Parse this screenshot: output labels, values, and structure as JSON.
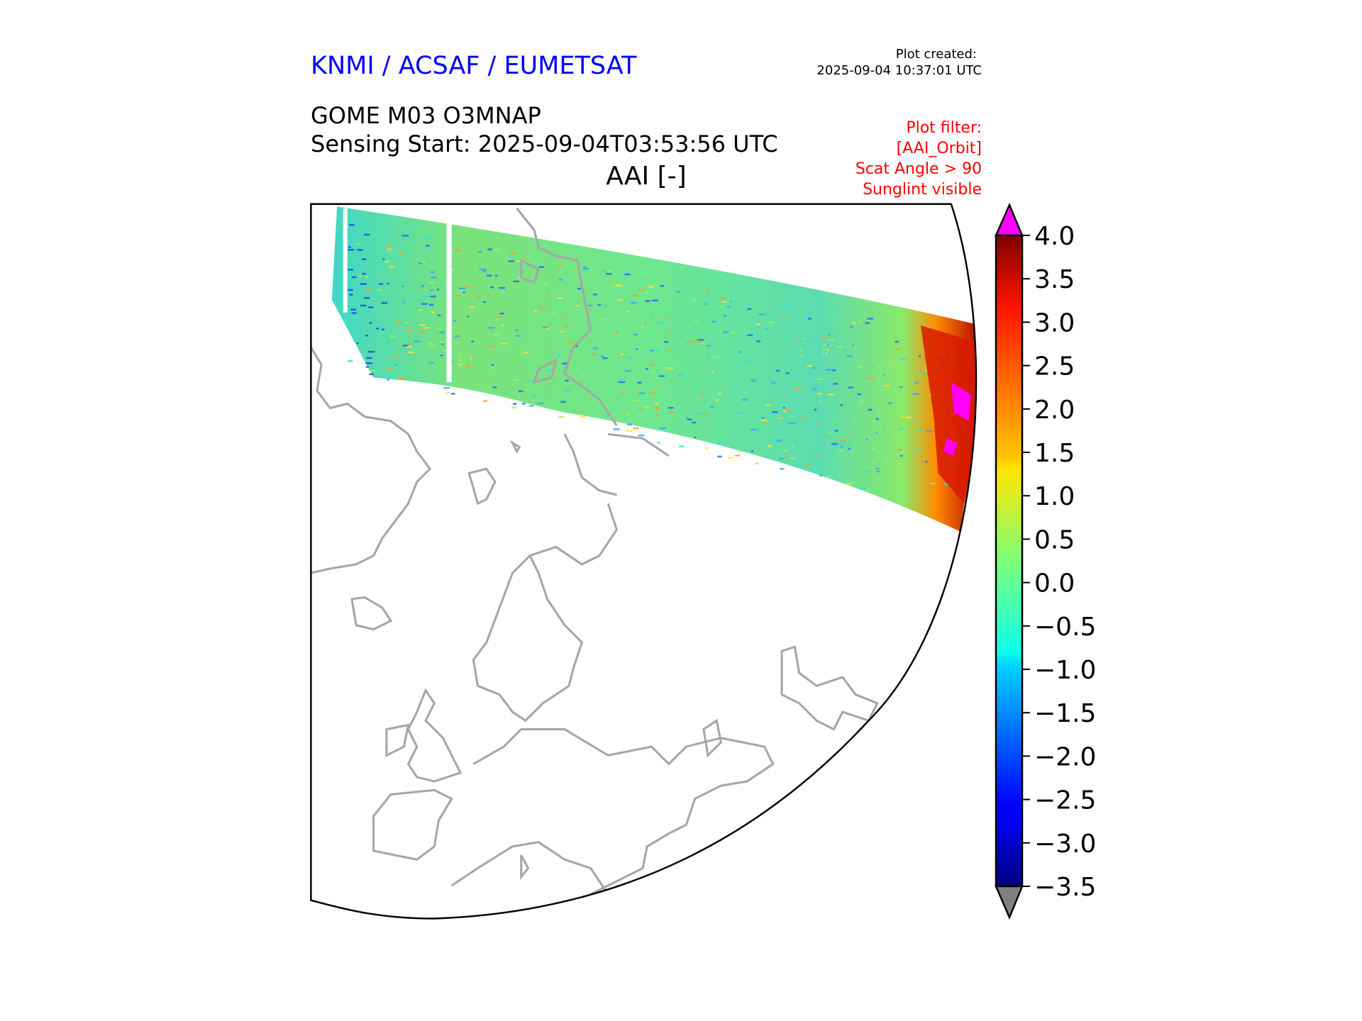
{
  "header": {
    "org": "KNMI / ACSAF / EUMETSAT",
    "created_label": "Plot created:",
    "created_value": "2025-09-04 10:37:01 UTC",
    "product": "GOME M03 O3MNAP",
    "sensing_start": "Sensing Start: 2025-09-04T03:53:56 UTC",
    "filter_lines": [
      "Plot filter:",
      "[AAI_Orbit]",
      "Scat Angle > 90",
      "Sunglint visible"
    ]
  },
  "colors": {
    "org": "#0000ff",
    "filter": "#ff0000",
    "over": "#ff00ff",
    "under": "#808080",
    "coast": "#a6a6a6"
  },
  "chart_data": {
    "type": "heatmap",
    "title": "AAI [-]",
    "colormap": "jet",
    "vmin": -3.5,
    "vmax": 4.0,
    "colorbar_ticks": [
      "4.0",
      "3.5",
      "3.0",
      "2.5",
      "2.0",
      "1.5",
      "1.0",
      "0.5",
      "0.0",
      "−0.5",
      "−1.0",
      "−1.5",
      "−2.0",
      "−2.5",
      "−3.0",
      "−3.5"
    ],
    "tick_values": [
      4.0,
      3.5,
      3.0,
      2.5,
      2.0,
      1.5,
      1.0,
      0.5,
      0.0,
      -0.5,
      -1.0,
      -1.5,
      -2.0,
      -2.5,
      -3.0,
      -3.5
    ],
    "extend": "both",
    "notes": "Single GOME swath across Arctic; mostly values -0.5 to 1.0, high values (2.5 to >4) at eastern end"
  }
}
